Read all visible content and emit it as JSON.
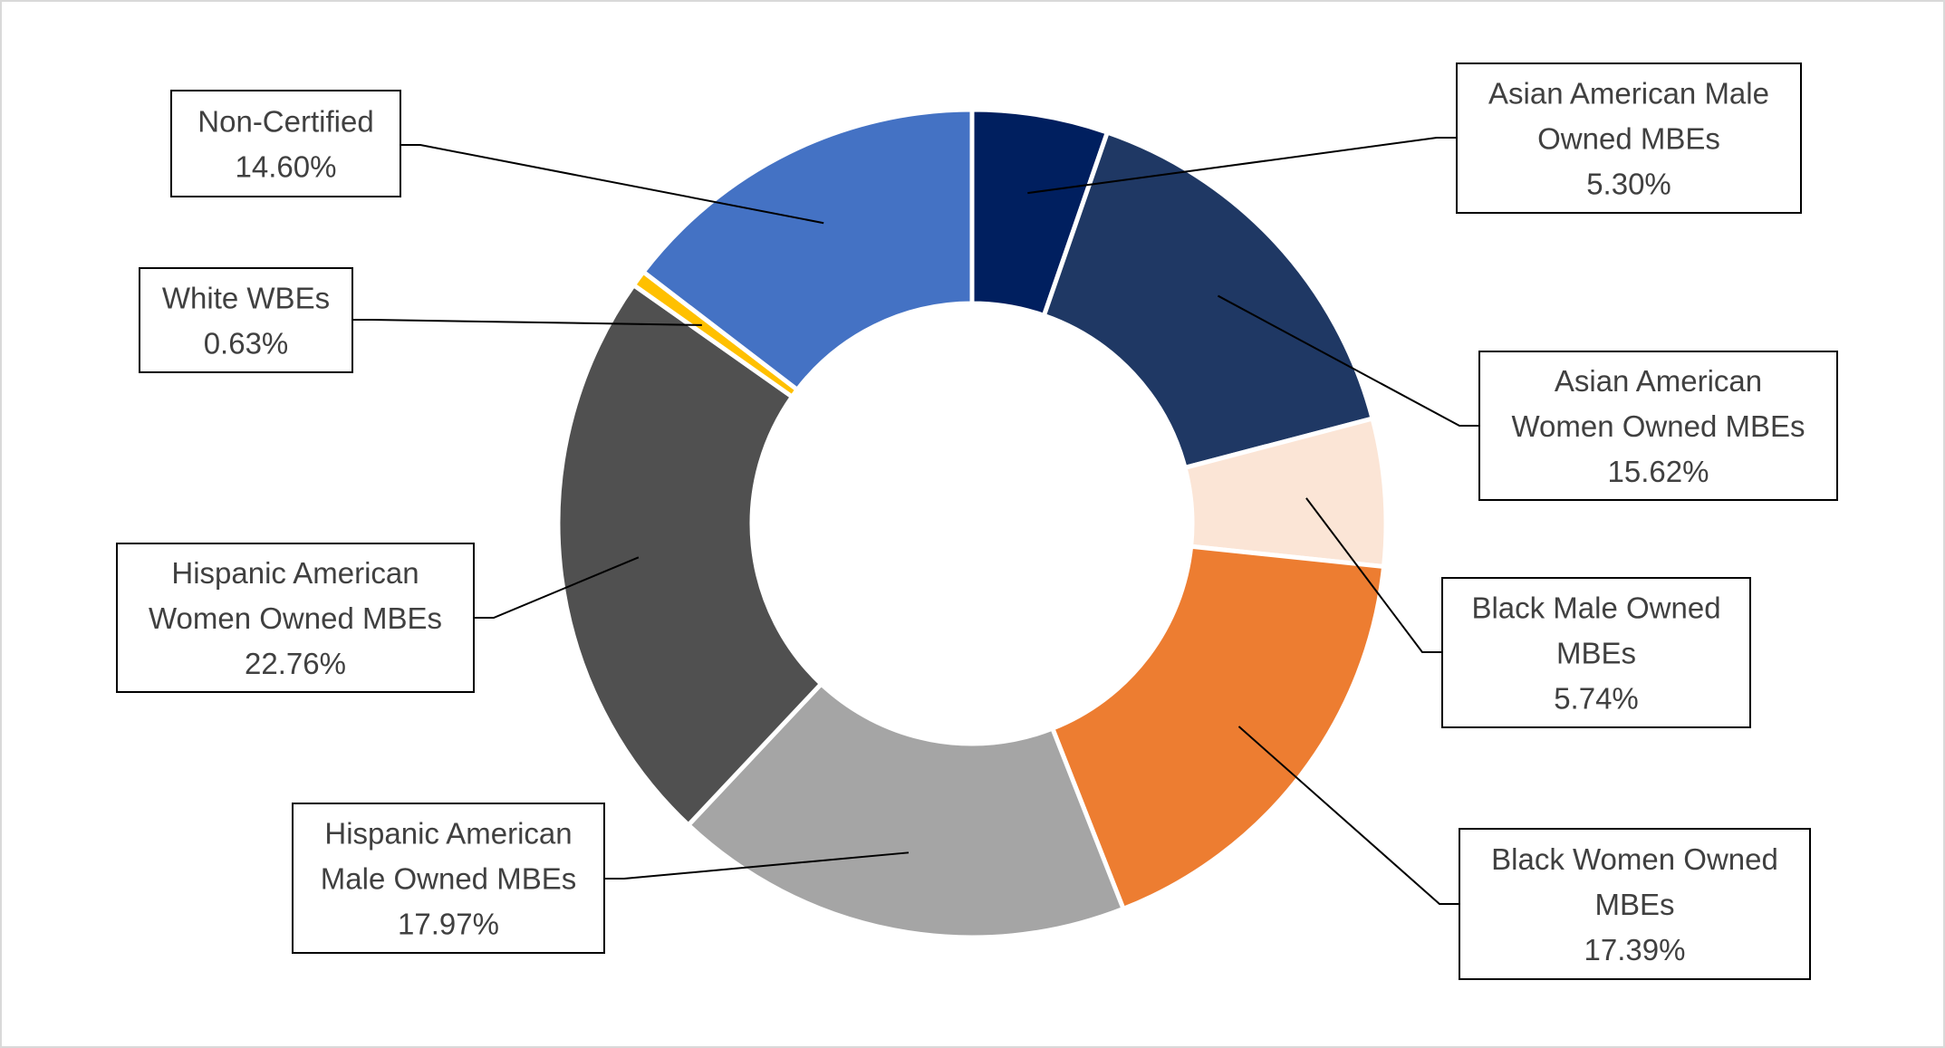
{
  "chart_data": {
    "type": "pie",
    "variant": "doughnut",
    "unit": "%",
    "slices": [
      {
        "label": [
          "Asian American Male",
          "Owned MBEs"
        ],
        "value_text": "5.30%",
        "value": 5.3,
        "color": "#001f5f"
      },
      {
        "label": [
          "Asian American",
          "Women Owned MBEs"
        ],
        "value_text": "15.62%",
        "value": 15.62,
        "color": "#1f3864"
      },
      {
        "label": [
          "Black Male Owned",
          "MBEs"
        ],
        "value_text": "5.74%",
        "value": 5.74,
        "color": "#fbe5d6"
      },
      {
        "label": [
          "Black Women Owned",
          "MBEs"
        ],
        "value_text": "17.39%",
        "value": 17.39,
        "color": "#ed7d31"
      },
      {
        "label": [
          "Hispanic American",
          "Male Owned MBEs"
        ],
        "value_text": "17.97%",
        "value": 17.97,
        "color": "#a5a5a5"
      },
      {
        "label": [
          "Hispanic American",
          "Women Owned MBEs"
        ],
        "value_text": "22.76%",
        "value": 22.76,
        "color": "#505050"
      },
      {
        "label": [
          "White WBEs"
        ],
        "value_text": "0.63%",
        "value": 0.63,
        "color": "#ffc000"
      },
      {
        "label": [
          "Non-Certified"
        ],
        "value_text": "14.60%",
        "value": 14.6,
        "color": "#4472c4"
      }
    ]
  }
}
